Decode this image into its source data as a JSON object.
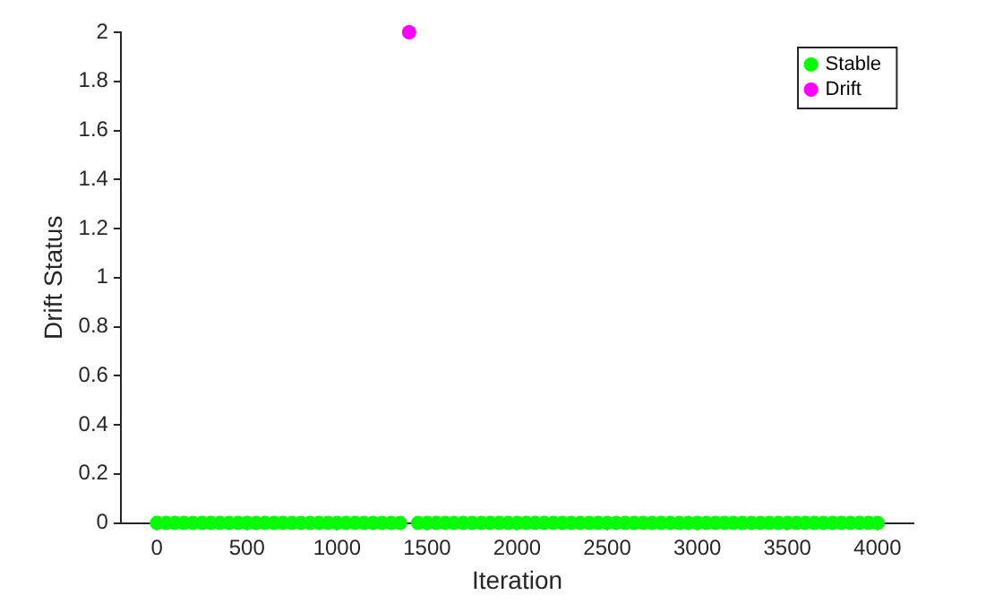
{
  "chart_data": {
    "type": "scatter",
    "xlabel": "Iteration",
    "ylabel": "Drift Status",
    "xlim": [
      -200,
      4200
    ],
    "xticks": [
      0,
      500,
      1000,
      1500,
      2000,
      2500,
      3000,
      3500,
      4000
    ],
    "ylim": [
      0,
      2
    ],
    "yticks": [
      0,
      0.2,
      0.4,
      0.6,
      0.8,
      1,
      1.2,
      1.4,
      1.6,
      1.8,
      2
    ],
    "grid": false,
    "legend": "top right",
    "marker": "circle",
    "series": [
      {
        "name": "Stable",
        "color": "#00ff00",
        "x": [
          0,
          50,
          100,
          150,
          200,
          250,
          300,
          350,
          400,
          450,
          500,
          550,
          600,
          650,
          700,
          750,
          800,
          850,
          900,
          950,
          1000,
          1050,
          1100,
          1150,
          1200,
          1250,
          1300,
          1350,
          1450,
          1500,
          1550,
          1600,
          1650,
          1700,
          1750,
          1800,
          1850,
          1900,
          1950,
          2000,
          2050,
          2100,
          2150,
          2200,
          2250,
          2300,
          2350,
          2400,
          2450,
          2500,
          2550,
          2600,
          2650,
          2700,
          2750,
          2800,
          2850,
          2900,
          2950,
          3000,
          3050,
          3100,
          3150,
          3200,
          3250,
          3300,
          3350,
          3400,
          3450,
          3500,
          3550,
          3600,
          3650,
          3700,
          3750,
          3800,
          3850,
          3900,
          3950,
          4000
        ],
        "values": [
          0,
          0,
          0,
          0,
          0,
          0,
          0,
          0,
          0,
          0,
          0,
          0,
          0,
          0,
          0,
          0,
          0,
          0,
          0,
          0,
          0,
          0,
          0,
          0,
          0,
          0,
          0,
          0,
          0,
          0,
          0,
          0,
          0,
          0,
          0,
          0,
          0,
          0,
          0,
          0,
          0,
          0,
          0,
          0,
          0,
          0,
          0,
          0,
          0,
          0,
          0,
          0,
          0,
          0,
          0,
          0,
          0,
          0,
          0,
          0,
          0,
          0,
          0,
          0,
          0,
          0,
          0,
          0,
          0,
          0,
          0,
          0,
          0,
          0,
          0,
          0,
          0,
          0,
          0,
          0
        ]
      },
      {
        "name": "Drift",
        "color": "#ff00ff",
        "x": [
          1400
        ],
        "values": [
          2
        ]
      }
    ]
  }
}
